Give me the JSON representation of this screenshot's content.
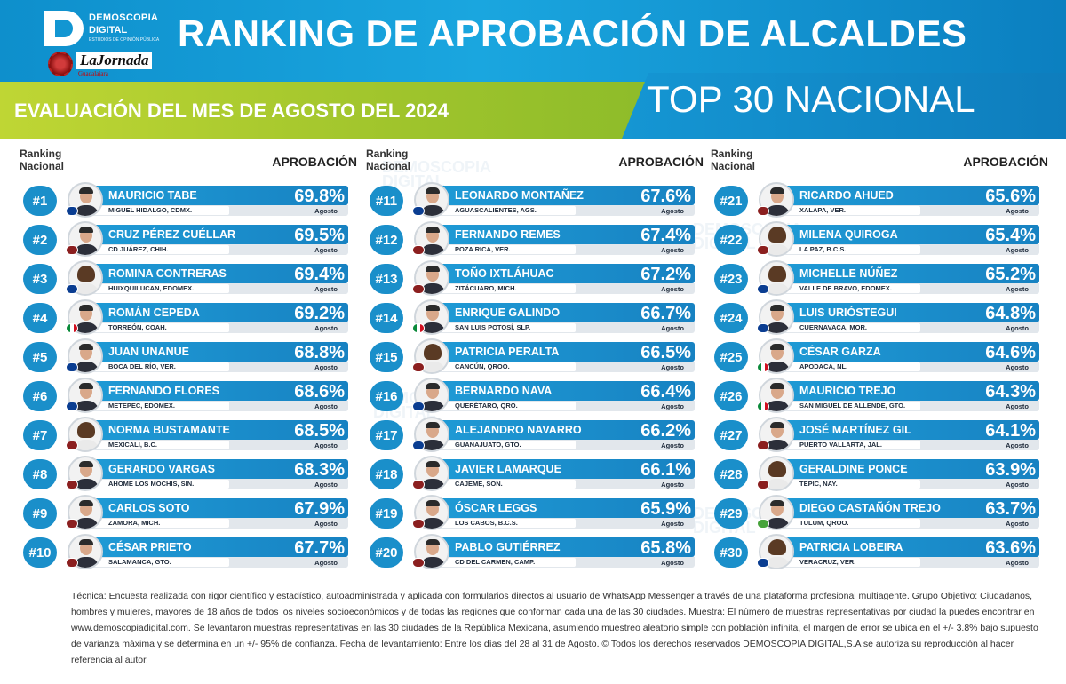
{
  "header": {
    "logo_line1": "DEMOSCOPIA",
    "logo_line2": "DIGITAL",
    "logo_line3": "ESTUDIOS DE OPINIÓN PÚBLICA",
    "partner_logo": "LaJornada",
    "partner_sub": "Guadalajara",
    "title": "RANKING DE APROBACIÓN DE ALCALDES",
    "subtitle": "EVALUACIÓN DEL MES DE AGOSTO DEL 2024",
    "top_label": "TOP 30 NACIONAL"
  },
  "labels": {
    "ranking": "Ranking",
    "nacional": "Nacional",
    "aprobacion": "APROBACIÓN",
    "month": "Agosto"
  },
  "columns": [
    {
      "rows": [
        {
          "rank": "#1",
          "name": "MAURICIO TABE",
          "city": "MIGUEL HIDALGO, CDMX.",
          "pct": "69.8%",
          "party": "pan",
          "gender": "m"
        },
        {
          "rank": "#2",
          "name": "CRUZ PÉREZ CUÉLLAR",
          "city": "CD JUÁREZ, CHIH.",
          "pct": "69.5%",
          "party": "morena",
          "gender": "m"
        },
        {
          "rank": "#3",
          "name": "ROMINA CONTRERAS",
          "city": "HUIXQUILUCAN, EDOMEX.",
          "pct": "69.4%",
          "party": "pan",
          "gender": "f"
        },
        {
          "rank": "#4",
          "name": "ROMÁN CEPEDA",
          "city": "TORREÓN, COAH.",
          "pct": "69.2%",
          "party": "pri",
          "gender": "m"
        },
        {
          "rank": "#5",
          "name": "JUAN UNANUE",
          "city": "BOCA DEL RÍO, VER.",
          "pct": "68.8%",
          "party": "pan",
          "gender": "m"
        },
        {
          "rank": "#6",
          "name": "FERNANDO FLORES",
          "city": "METEPEC, EDOMEX.",
          "pct": "68.6%",
          "party": "pan",
          "gender": "m"
        },
        {
          "rank": "#7",
          "name": "NORMA BUSTAMANTE",
          "city": "MEXICALI, B.C.",
          "pct": "68.5%",
          "party": "morena",
          "gender": "f"
        },
        {
          "rank": "#8",
          "name": "GERARDO VARGAS",
          "city": "AHOME LOS MOCHIS, SIN.",
          "pct": "68.3%",
          "party": "morena",
          "gender": "m"
        },
        {
          "rank": "#9",
          "name": "CARLOS SOTO",
          "city": "ZAMORA, MICH.",
          "pct": "67.9%",
          "party": "morena",
          "gender": "m"
        },
        {
          "rank": "#10",
          "name": "CÉSAR PRIETO",
          "city": "SALAMANCA, GTO.",
          "pct": "67.7%",
          "party": "morena",
          "gender": "m"
        }
      ]
    },
    {
      "rows": [
        {
          "rank": "#11",
          "name": "LEONARDO MONTAÑEZ",
          "city": "AGUASCALIENTES, AGS.",
          "pct": "67.6%",
          "party": "pan",
          "gender": "m"
        },
        {
          "rank": "#12",
          "name": "FERNANDO REMES",
          "city": "POZA RICA, VER.",
          "pct": "67.4%",
          "party": "morena",
          "gender": "m"
        },
        {
          "rank": "#13",
          "name": "TOÑO IXTLÁHUAC",
          "city": "ZITÁCUARO, MICH.",
          "pct": "67.2%",
          "party": "morena",
          "gender": "m"
        },
        {
          "rank": "#14",
          "name": "ENRIQUE GALINDO",
          "city": "SAN LUIS POTOSÍ, SLP.",
          "pct": "66.7%",
          "party": "pri",
          "gender": "m"
        },
        {
          "rank": "#15",
          "name": "PATRICIA PERALTA",
          "city": "CANCÚN, QROO.",
          "pct": "66.5%",
          "party": "morena",
          "gender": "f"
        },
        {
          "rank": "#16",
          "name": "BERNARDO NAVA",
          "city": "QUERÉTARO, QRO.",
          "pct": "66.4%",
          "party": "pan",
          "gender": "m"
        },
        {
          "rank": "#17",
          "name": "ALEJANDRO NAVARRO",
          "city": "GUANAJUATO, GTO.",
          "pct": "66.2%",
          "party": "pan",
          "gender": "m"
        },
        {
          "rank": "#18",
          "name": "JAVIER LAMARQUE",
          "city": "CAJEME, SON.",
          "pct": "66.1%",
          "party": "morena",
          "gender": "m"
        },
        {
          "rank": "#19",
          "name": "ÓSCAR LEGGS",
          "city": "LOS CABOS, B.C.S.",
          "pct": "65.9%",
          "party": "morena",
          "gender": "m"
        },
        {
          "rank": "#20",
          "name": "PABLO GUTIÉRREZ",
          "city": "CD DEL CARMEN, CAMP.",
          "pct": "65.8%",
          "party": "morena",
          "gender": "m"
        }
      ]
    },
    {
      "rows": [
        {
          "rank": "#21",
          "name": "RICARDO AHUED",
          "city": "XALAPA, VER.",
          "pct": "65.6%",
          "party": "morena",
          "gender": "m"
        },
        {
          "rank": "#22",
          "name": "MILENA QUIROGA",
          "city": "LA PAZ, B.C.S.",
          "pct": "65.4%",
          "party": "morena",
          "gender": "f"
        },
        {
          "rank": "#23",
          "name": "MICHELLE NÚÑEZ",
          "city": "VALLE DE BRAVO, EDOMEX.",
          "pct": "65.2%",
          "party": "pan",
          "gender": "f"
        },
        {
          "rank": "#24",
          "name": "LUIS URIÓSTEGUI",
          "city": "CUERNAVACA, MOR.",
          "pct": "64.8%",
          "party": "pan",
          "gender": "m"
        },
        {
          "rank": "#25",
          "name": "CÉSAR GARZA",
          "city": "APODACA, NL.",
          "pct": "64.6%",
          "party": "pri",
          "gender": "m"
        },
        {
          "rank": "#26",
          "name": "MAURICIO TREJO",
          "city": "SAN MIGUEL DE ALLENDE, GTO.",
          "pct": "64.3%",
          "party": "pri",
          "gender": "m"
        },
        {
          "rank": "#27",
          "name": "JOSÉ MARTÍNEZ GIL",
          "city": "PUERTO VALLARTA, JAL.",
          "pct": "64.1%",
          "party": "morena",
          "gender": "m"
        },
        {
          "rank": "#28",
          "name": "GERALDINE PONCE",
          "city": "TEPIC, NAY.",
          "pct": "63.9%",
          "party": "morena",
          "gender": "f"
        },
        {
          "rank": "#29",
          "name": "DIEGO CASTAÑÓN TREJO",
          "city": "TULUM, QROO.",
          "pct": "63.7%",
          "party": "pv",
          "gender": "m"
        },
        {
          "rank": "#30",
          "name": "PATRICIA LOBEIRA",
          "city": "VERACRUZ, VER.",
          "pct": "63.6%",
          "party": "pan",
          "gender": "f"
        }
      ]
    }
  ],
  "footer": "Técnica: Encuesta realizada con rigor científico y estadístico, autoadministrada y aplicada con formularios directos al usuario de WhatsApp Messenger a través de una plataforma profesional multiagente. Grupo Objetivo: Ciudadanos, hombres y mujeres, mayores de 18 años de todos los niveles socioeconómicos y de todas las regiones que conforman cada una de las 30 ciudades. Muestra: El número  de muestras representativas por ciudad la puedes encontrar en www.demoscopiadigital.com. Se levantaron muestras representativas en las 30 ciudades de la República Mexicana, asumiendo muestreo aleatorio simple con población infinita, el margen de error se ubica en el +/- 3.8% bajo supuesto de varianza máxima y se determina en un +/- 95% de confianza. Fecha de levantamiento: Entre los días del 28 al 31 de Agosto. © Todos los derechos reservados DEMOSCOPIA DIGITAL,S.A se autoriza su reproducción al hacer referencia al autor.",
  "colors": {
    "header_blue": "#1aa6df",
    "header_green": "#9fc42c",
    "bar_blue": "#1a8fca"
  }
}
